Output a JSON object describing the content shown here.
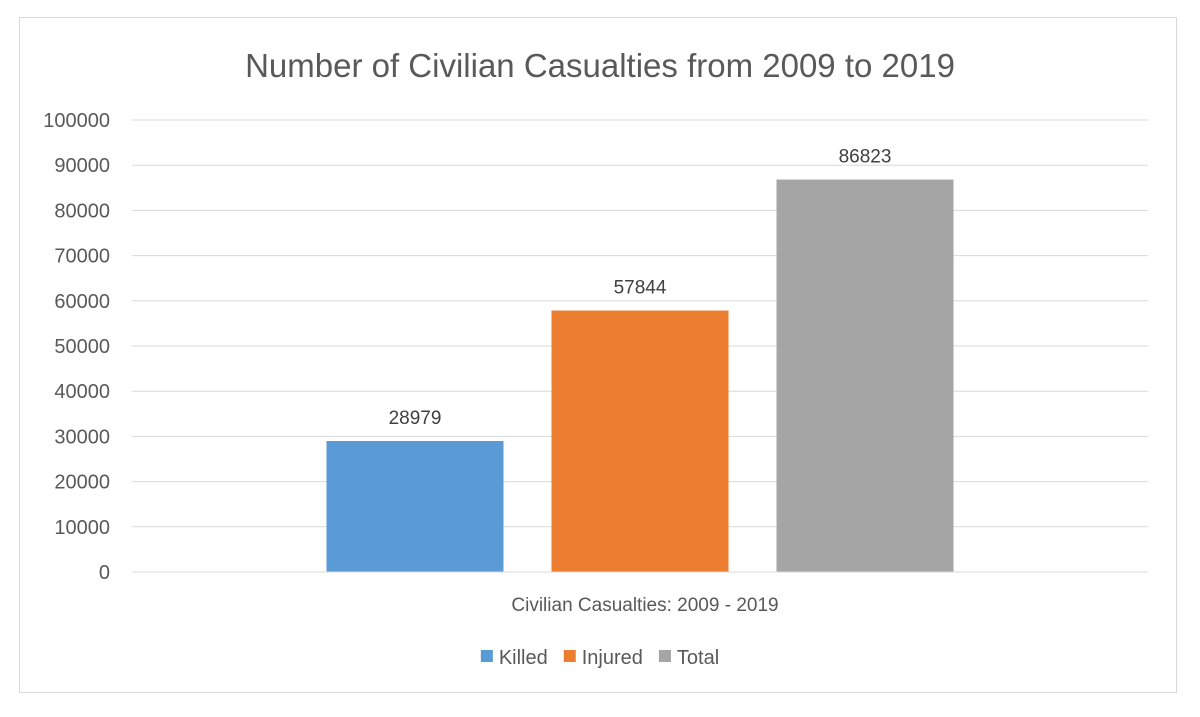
{
  "chart_data": {
    "type": "bar",
    "title": "Number of Civilian Casualties from 2009 to 2019",
    "categories": [
      "Civilian Casualties: 2009 - 2019"
    ],
    "series": [
      {
        "name": "Killed",
        "values": [
          28979
        ],
        "color": "#5b9bd5"
      },
      {
        "name": "Injured",
        "values": [
          57844
        ],
        "color": "#ed7d31"
      },
      {
        "name": "Total",
        "values": [
          86823
        ],
        "color": "#a5a5a5"
      }
    ],
    "xlabel": "",
    "ylabel": "",
    "ylim": [
      0,
      100000
    ],
    "yticks": [
      "0",
      "10000",
      "20000",
      "30000",
      "40000",
      "50000",
      "60000",
      "70000",
      "80000",
      "90000",
      "100000"
    ],
    "grid": true,
    "legend_position": "bottom",
    "colors": {
      "gridline": "#d9d9d9",
      "axis_text": "#595959"
    }
  }
}
